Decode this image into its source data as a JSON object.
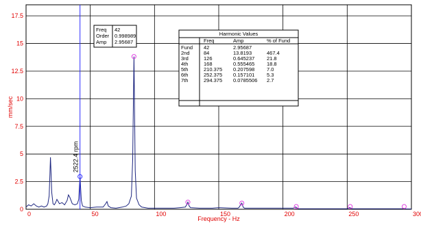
{
  "chart_data": {
    "type": "line",
    "xlabel": "Frequency - Hz",
    "ylabel": "mm/sec",
    "xlim": [
      0,
      300
    ],
    "ylim": [
      0,
      18.5
    ],
    "x_ticks": [
      "0",
      "50",
      "100",
      "150",
      "200",
      "250",
      "300"
    ],
    "y_ticks": [
      "0",
      "2.5",
      "5",
      "7.5",
      "10",
      "12.5",
      "15",
      "17.5"
    ],
    "grid": true,
    "colors": {
      "axis_text": "#e00000",
      "spectrum": "#1a237e",
      "cursor": "#2b2bff",
      "harmonic_marker": "#e040e0",
      "grid": "#000000"
    },
    "spectrum": {
      "x": [
        0,
        2,
        4,
        6,
        8,
        10,
        12,
        14,
        16,
        17,
        18,
        19,
        20,
        21,
        22,
        23,
        24,
        26,
        28,
        30,
        32,
        33,
        34,
        35,
        36,
        38,
        40,
        41,
        42,
        43,
        44,
        46,
        50,
        55,
        60,
        62,
        63,
        64,
        66,
        70,
        75,
        78,
        80,
        82,
        83,
        84,
        85,
        86,
        88,
        90,
        95,
        100,
        110,
        115,
        120,
        124,
        125,
        126,
        127,
        128,
        135,
        145,
        150,
        160,
        165,
        166,
        167,
        168,
        169,
        170,
        180,
        190,
        200,
        208,
        210,
        211,
        212,
        220,
        230,
        240,
        250,
        251,
        252,
        253,
        254,
        260,
        270,
        280,
        290,
        293,
        294,
        295,
        296,
        300
      ],
      "y": [
        0.2,
        0.4,
        0.3,
        0.5,
        0.3,
        0.2,
        0.3,
        0.2,
        0.3,
        0.5,
        1.2,
        4.7,
        1.5,
        0.5,
        0.4,
        0.6,
        0.9,
        0.5,
        0.6,
        0.4,
        0.8,
        1.3,
        1.1,
        0.8,
        0.5,
        0.4,
        0.5,
        0.9,
        2.96,
        0.8,
        0.3,
        0.2,
        0.15,
        0.2,
        0.2,
        0.5,
        0.7,
        0.3,
        0.15,
        0.1,
        0.2,
        0.3,
        0.5,
        1.2,
        4.5,
        13.82,
        3.5,
        1.0,
        0.4,
        0.2,
        0.1,
        0.1,
        0.1,
        0.1,
        0.15,
        0.2,
        0.4,
        0.65,
        0.3,
        0.15,
        0.1,
        0.1,
        0.15,
        0.1,
        0.1,
        0.2,
        0.4,
        0.56,
        0.2,
        0.1,
        0.1,
        0.1,
        0.1,
        0.1,
        0.21,
        0.1,
        0.05,
        0.05,
        0.05,
        0.05,
        0.05,
        0.1,
        0.16,
        0.08,
        0.05,
        0.05,
        0.05,
        0.05,
        0.05,
        0.05,
        0.08,
        0.05,
        0.03,
        0.03
      ]
    },
    "harmonic_markers": [
      {
        "x": 84,
        "y": 13.8193
      },
      {
        "x": 126,
        "y": 0.645237
      },
      {
        "x": 168,
        "y": 0.555465
      },
      {
        "x": 210.375,
        "y": 0.207598
      },
      {
        "x": 252.375,
        "y": 0.157101
      },
      {
        "x": 294.375,
        "y": 0.0785506
      }
    ],
    "cursor": {
      "x": 42,
      "y": 2.95687,
      "label": "2522.4 rpm"
    },
    "cursor_box": {
      "rows": [
        {
          "label": "Freq",
          "value": "42"
        },
        {
          "label": "Order",
          "value": "0.998989"
        },
        {
          "label": "Amp",
          "value": "2.95687"
        }
      ]
    },
    "harmonic_table": {
      "title": "Harmonic Values",
      "columns": [
        "",
        "Freq",
        "Amp",
        "% of Fund"
      ],
      "rows": [
        [
          "Fund",
          "42",
          "2.95687",
          ""
        ],
        [
          "2nd",
          "84",
          "13.8193",
          "467.4"
        ],
        [
          "3rd",
          "126",
          "0.645237",
          "21.8"
        ],
        [
          "4th",
          "168",
          "0.555465",
          "18.8"
        ],
        [
          "5th",
          "210.375",
          "0.207598",
          "7.0"
        ],
        [
          "6th",
          "252.375",
          "0.157101",
          "5.3"
        ],
        [
          "7th",
          "294.375",
          "0.0785506",
          "2.7"
        ]
      ]
    }
  }
}
